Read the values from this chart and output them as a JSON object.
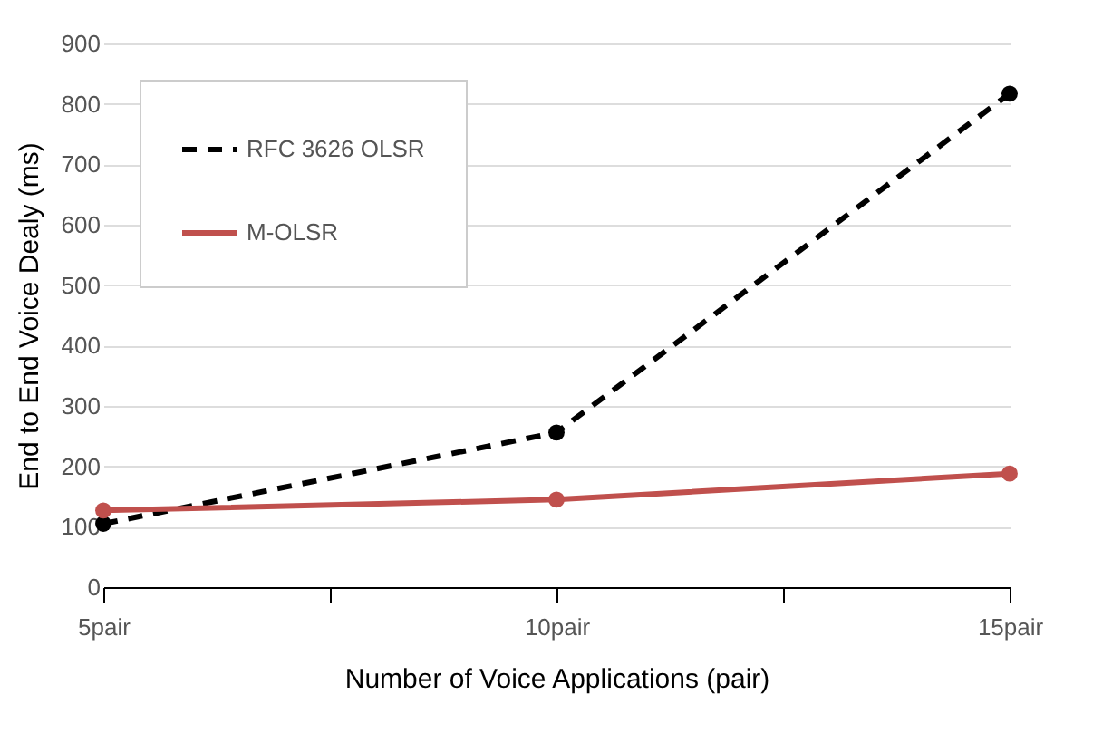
{
  "chart_data": {
    "type": "line",
    "xlabel": "Number of Voice Applications (pair)",
    "ylabel": "End to End Voice Dealy (ms)",
    "x": [
      5,
      10,
      15
    ],
    "xlim": [
      5,
      15
    ],
    "xticks": [
      {
        "value": 5,
        "label": "5pair"
      },
      {
        "value": 7.5,
        "label": null
      },
      {
        "value": 10,
        "label": "10pair"
      },
      {
        "value": 12.5,
        "label": null
      },
      {
        "value": 15,
        "label": "15pair"
      }
    ],
    "ylim": [
      0,
      900
    ],
    "yticks": [
      0,
      100,
      200,
      300,
      400,
      500,
      600,
      700,
      800,
      900
    ],
    "series": [
      {
        "name": "RFC 3626 OLSR",
        "color": "#000000",
        "values": [
          105,
          256,
          817
        ],
        "line_style": "dashed"
      },
      {
        "name": "M-OLSR",
        "color": "#c0504d",
        "values": [
          127,
          145,
          188
        ],
        "line_style": "solid"
      }
    ],
    "grid": "y",
    "legend": "top left",
    "marker": "circle"
  }
}
